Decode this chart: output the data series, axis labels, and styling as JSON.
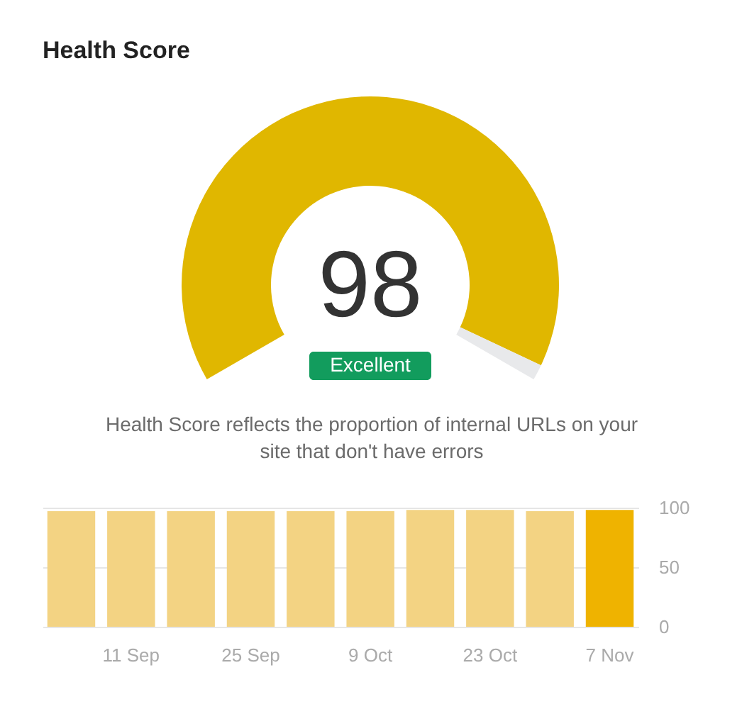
{
  "chart_data": [
    {
      "type": "donut",
      "title": "Health Score",
      "categories": [
        null,
        null
      ],
      "values": [
        98,
        2
      ],
      "colors": [
        "#e0b700",
        "#e8e9eb"
      ],
      "value_labels": [
        "98",
        null
      ],
      "annotations": [
        "Excellent",
        "Health Score reflects the proportion of internal URLs on your site that don't have errors"
      ]
    },
    {
      "type": "bar",
      "categories": [
        null,
        "11 Sep",
        null,
        "25 Sep",
        null,
        "9 Oct",
        null,
        "23 Oct",
        null,
        "7 Nov"
      ],
      "values": [
        97,
        97,
        97,
        97,
        97,
        97,
        98,
        98,
        97,
        98
      ],
      "colors": [
        "#f3d383",
        "#f3d383",
        "#f3d383",
        "#f3d383",
        "#f3d383",
        "#f3d383",
        "#f3d383",
        "#f3d383",
        "#f3d383",
        "#efb300"
      ],
      "ylim": [
        0,
        100
      ],
      "yticks": [
        0,
        50,
        100
      ],
      "grid": "y"
    }
  ]
}
